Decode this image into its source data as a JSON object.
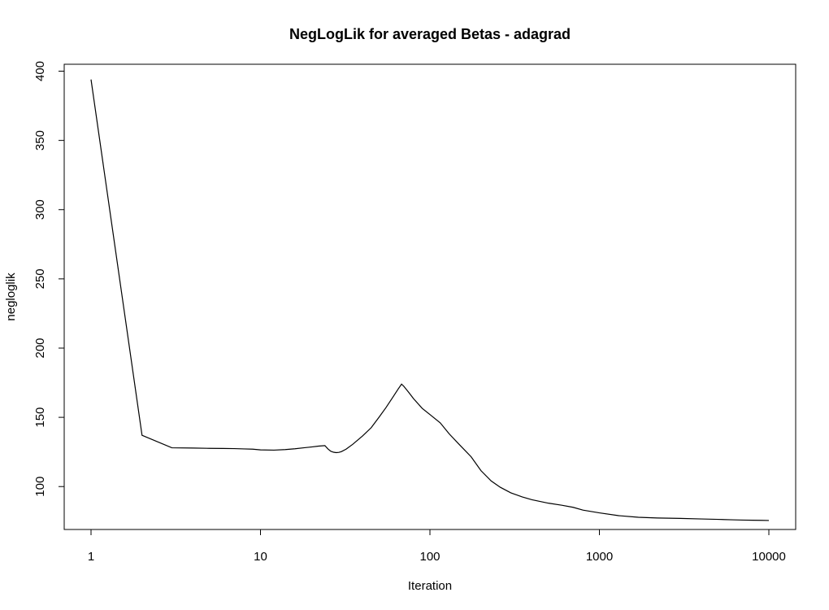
{
  "chart_data": {
    "type": "line",
    "title": "NegLogLik for averaged Betas - adagrad",
    "xlabel": "Iteration",
    "ylabel": "negloglik",
    "x_scale": "log10",
    "xlim": [
      1,
      10000
    ],
    "ylim": [
      69,
      405
    ],
    "x_ticks": [
      1,
      10,
      100,
      1000,
      10000
    ],
    "x_tick_labels": [
      "1",
      "10",
      "100",
      "1000",
      "10000"
    ],
    "y_ticks": [
      100,
      150,
      200,
      250,
      300,
      350,
      400
    ],
    "y_tick_labels": [
      "100",
      "150",
      "200",
      "250",
      "300",
      "350",
      "400"
    ],
    "grid": false,
    "legend": "none",
    "series": [
      {
        "color": "#000000",
        "x": [
          1,
          2,
          3,
          4,
          5,
          6,
          7,
          8,
          9,
          10,
          12,
          14,
          16,
          18,
          20,
          22,
          24,
          25,
          26,
          27,
          28,
          29,
          30,
          32,
          35,
          40,
          45,
          50,
          55,
          60,
          65,
          68,
          70,
          75,
          80,
          90,
          100,
          115,
          130,
          150,
          175,
          200,
          230,
          260,
          300,
          350,
          400,
          500,
          600,
          700,
          800,
          1000,
          1300,
          1700,
          2200,
          3000,
          4000,
          5000,
          6000,
          7000,
          8000,
          9000,
          10000
        ],
        "values": [
          394,
          137,
          128,
          127.8,
          127.6,
          127.5,
          127.4,
          127.2,
          127,
          126.5,
          126.3,
          126.7,
          127.3,
          128,
          128.6,
          129.2,
          129.6,
          127.2,
          125.5,
          124.8,
          124.5,
          124.7,
          125.2,
          127,
          130.5,
          136.5,
          142.5,
          150,
          157,
          164,
          170.5,
          174,
          172.5,
          168,
          163.5,
          156.5,
          152,
          146,
          138,
          130,
          121.5,
          111.5,
          104,
          99.5,
          95.5,
          92.5,
          90.5,
          88,
          86.5,
          85,
          83,
          81,
          79,
          77.8,
          77.3,
          77,
          76.6,
          76.3,
          76,
          75.8,
          75.7,
          75.6,
          75.5
        ]
      }
    ]
  }
}
